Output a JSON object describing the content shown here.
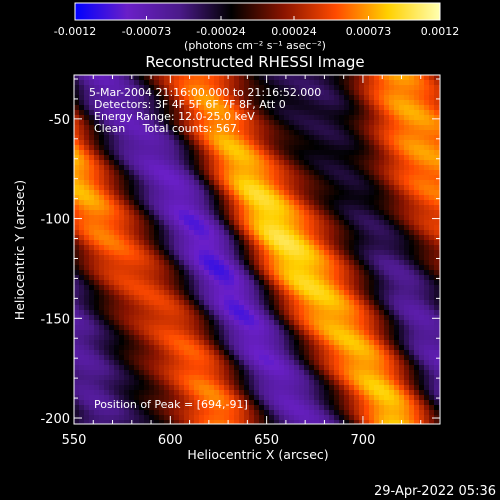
{
  "chart_data": {
    "type": "heatmap",
    "title": "Reconstructed RHESSI Image",
    "xlabel": "Heliocentric X (arcsec)",
    "ylabel": "Heliocentric Y (arcsec)",
    "xlim": [
      550,
      740
    ],
    "ylim": [
      -203,
      -28
    ],
    "x_ticks": [
      550,
      600,
      650,
      700
    ],
    "y_ticks": [
      -50,
      -100,
      -150,
      -200
    ],
    "colorbar": {
      "range": [
        -0.0012,
        0.0012
      ],
      "tick_labels": [
        "-0.0012",
        "-0.00073",
        "-0.00024",
        "0.00024",
        "0.00073",
        "0.0012"
      ],
      "unit_label": "(photons cm⁻² s⁻¹ asec⁻²)",
      "colors": [
        "#0000ff",
        "#6a1fc8",
        "#4b1a8a",
        "#000000",
        "#8a1400",
        "#ff4a00",
        "#ffd000",
        "#ffffb0"
      ]
    },
    "annotations": [
      "5-Mar-2004 21:16:00.000 to 21:16:52.000",
      "Detectors: 3F 4F 5F 6F 7F 8F, Att 0",
      "Energy Range: 12.0-25.0 keV",
      "Clean     Total counts: 567."
    ],
    "peak_text": "Position of Peak = [694,-91]",
    "peak": {
      "x": 694,
      "y": -91
    },
    "stripe_orientation_deg": -60,
    "footer_timestamp": "29-Apr-2022 05:36"
  }
}
